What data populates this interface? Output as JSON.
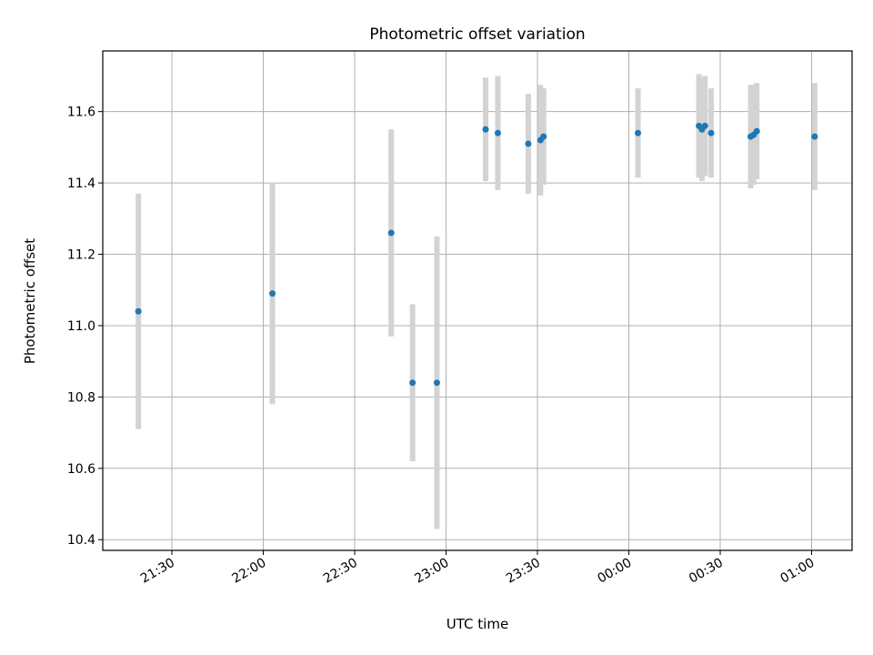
{
  "chart_data": {
    "type": "scatter",
    "title": "Photometric offset variation",
    "xlabel": "UTC time",
    "ylabel": "Photometric offset",
    "x_axis": {
      "kind": "time",
      "ticks": [
        "21:30",
        "22:00",
        "22:30",
        "23:00",
        "23:30",
        "00:00",
        "00:30",
        "01:00"
      ]
    },
    "y_axis": {
      "range": [
        10.37,
        11.77
      ],
      "ticks": [
        "10.4",
        "10.6",
        "10.8",
        "11.0",
        "11.2",
        "11.4",
        "11.6"
      ]
    },
    "grid": true,
    "colors": {
      "point": "#1f77b4",
      "errorbar": "#d3d3d3",
      "grid": "#b0b0b0",
      "frame": "#000000"
    },
    "series": [
      {
        "points": [
          {
            "time": "21:19",
            "y": 11.04,
            "err": 0.33
          },
          {
            "time": "22:03",
            "y": 11.09,
            "err": 0.31
          },
          {
            "time": "22:42",
            "y": 11.26,
            "err": 0.29
          },
          {
            "time": "22:49",
            "y": 10.84,
            "err": 0.22
          },
          {
            "time": "22:57",
            "y": 10.84,
            "err": 0.41
          },
          {
            "time": "23:13",
            "y": 11.55,
            "err": 0.145
          },
          {
            "time": "23:17",
            "y": 11.54,
            "err": 0.16
          },
          {
            "time": "23:27",
            "y": 11.51,
            "err": 0.14
          },
          {
            "time": "23:31",
            "y": 11.52,
            "err": 0.155
          },
          {
            "time": "23:32",
            "y": 11.53,
            "err": 0.135
          },
          {
            "time": "00:03",
            "y": 11.54,
            "err": 0.125
          },
          {
            "time": "00:23",
            "y": 11.56,
            "err": 0.145
          },
          {
            "time": "00:24",
            "y": 11.55,
            "err": 0.145
          },
          {
            "time": "00:25",
            "y": 11.56,
            "err": 0.14
          },
          {
            "time": "00:27",
            "y": 11.54,
            "err": 0.125
          },
          {
            "time": "00:40",
            "y": 11.53,
            "err": 0.145
          },
          {
            "time": "00:41",
            "y": 11.535,
            "err": 0.14
          },
          {
            "time": "00:42",
            "y": 11.545,
            "err": 0.135
          },
          {
            "time": "01:01",
            "y": 11.53,
            "err": 0.15
          }
        ]
      }
    ]
  }
}
